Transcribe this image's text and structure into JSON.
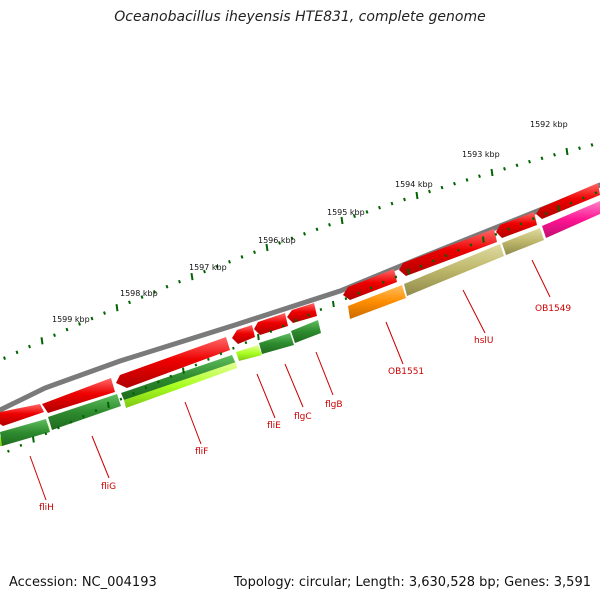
{
  "title": "Oceanobacillus iheyensis HTE831, complete genome",
  "footer": {
    "accession": "Accession: NC_004193",
    "summary": "Topology: circular; Length: 3,630,528 bp; Genes: 3,591"
  },
  "scale_labels": [
    "1592 kbp",
    "1593 kbp",
    "1594 kbp",
    "1595 kbp",
    "1596 kbp",
    "1597 kbp",
    "1598 kbp",
    "1599 kbp"
  ],
  "gene_labels": [
    "OB1549",
    "hslU",
    "OB1551",
    "flgB",
    "flgC",
    "fliE",
    "fliF",
    "fliG",
    "fliH"
  ],
  "colors": {
    "backbone": "#7a7a7a",
    "gene_red": "#ee0000",
    "cds_darkgreen": "#2e8b2e",
    "cds_lightgreen": "#aaff22",
    "cds_khaki": "#bdb76b",
    "cds_orange": "#ff8c00",
    "cds_pink": "#ff1493",
    "tick_green": "#006400",
    "label_red": "#cc0000"
  }
}
